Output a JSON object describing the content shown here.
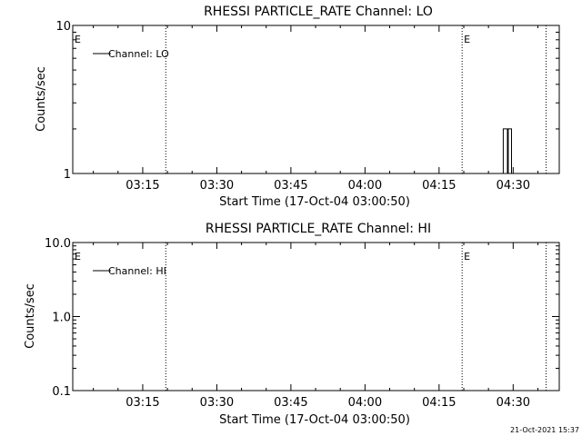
{
  "colors": {
    "background": "#ffffff",
    "ink": "#000000"
  },
  "footer": {
    "timestamp": "21-Oct-2021 15:37"
  },
  "chart_data": [
    {
      "type": "line",
      "title": "RHESSI PARTICLE_RATE Channel: LO",
      "xlabel": "Start Time (17-Oct-04 03:00:50)",
      "ylabel": "Counts/sec",
      "yscale": "log",
      "ylim": [
        1,
        10
      ],
      "ytick_labels": [
        "1",
        "10"
      ],
      "ytick_values": [
        1,
        10
      ],
      "xlim": [
        "03:00:50",
        "04:39:20"
      ],
      "xtick_labels": [
        "03:15",
        "03:30",
        "03:45",
        "04:00",
        "04:15",
        "04:30"
      ],
      "xtick_values": [
        "03:15",
        "03:30",
        "03:45",
        "04:00",
        "04:15",
        "04:30"
      ],
      "vlines": [
        "03:19:40",
        "04:19:40",
        "04:36:40"
      ],
      "event_markers": [
        {
          "label": "E",
          "time": "03:00:50"
        },
        {
          "label": "E",
          "time": "04:19:40"
        }
      ],
      "legend": {
        "position": "top-left",
        "entries": [
          "Channel: LO"
        ]
      },
      "series": [
        {
          "name": "Channel: LO",
          "points": [
            [
              "04:28:00",
              1
            ],
            [
              "04:28:00",
              2
            ],
            [
              "04:28:50",
              2
            ],
            [
              "04:28:50",
              1
            ],
            [
              "04:29:00",
              1
            ],
            [
              "04:29:00",
              2
            ],
            [
              "04:29:40",
              2
            ],
            [
              "04:29:40",
              1
            ]
          ]
        }
      ]
    },
    {
      "type": "line",
      "title": "RHESSI PARTICLE_RATE Channel: HI",
      "xlabel": "Start Time (17-Oct-04 03:00:50)",
      "ylabel": "Counts/sec",
      "yscale": "log",
      "ylim": [
        0.1,
        10
      ],
      "ytick_labels": [
        "0.1",
        "1.0",
        "10.0"
      ],
      "ytick_values": [
        0.1,
        1,
        10
      ],
      "xlim": [
        "03:00:50",
        "04:39:20"
      ],
      "xtick_labels": [
        "03:15",
        "03:30",
        "03:45",
        "04:00",
        "04:15",
        "04:30"
      ],
      "xtick_values": [
        "03:15",
        "03:30",
        "03:45",
        "04:00",
        "04:15",
        "04:30"
      ],
      "vlines": [
        "03:19:40",
        "04:19:40",
        "04:36:40"
      ],
      "event_markers": [
        {
          "label": "E",
          "time": "03:00:50"
        },
        {
          "label": "E",
          "time": "04:19:40"
        }
      ],
      "legend": {
        "position": "top-left",
        "entries": [
          "Channel: HI"
        ]
      },
      "series": [
        {
          "name": "Channel: HI",
          "points": []
        }
      ]
    }
  ]
}
